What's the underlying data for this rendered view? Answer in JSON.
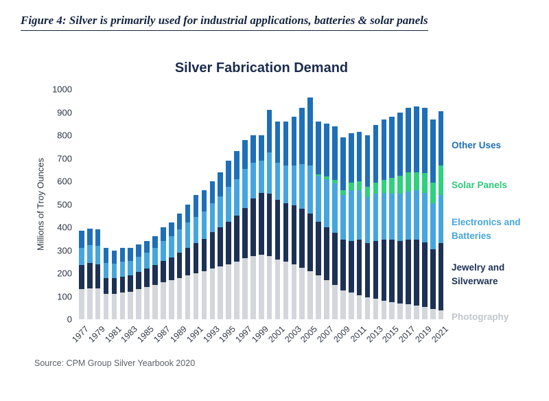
{
  "caption": "Figure 4: Silver is primarily used for industrial applications, batteries & solar panels",
  "source": "Source: CPM Group Silver Yearbook 2020",
  "chart_data": {
    "type": "bar",
    "stacked": true,
    "title": "Silver Fabrication Demand",
    "xlabel": "",
    "ylabel": "Millions of Troy Ounces",
    "ylim": [
      0,
      1000
    ],
    "ytick_step": 100,
    "grid": false,
    "legend_position": "right",
    "categories": [
      1977,
      1978,
      1979,
      1980,
      1981,
      1982,
      1983,
      1984,
      1985,
      1986,
      1987,
      1988,
      1989,
      1990,
      1991,
      1992,
      1993,
      1994,
      1995,
      1996,
      1997,
      1998,
      1999,
      2000,
      2001,
      2002,
      2003,
      2004,
      2005,
      2006,
      2007,
      2008,
      2009,
      2010,
      2011,
      2012,
      2013,
      2014,
      2015,
      2016,
      2017,
      2018,
      2019,
      2020,
      2021
    ],
    "xtick_labels": [
      1977,
      1979,
      1981,
      1983,
      1985,
      1987,
      1989,
      1991,
      1993,
      1995,
      1997,
      1999,
      2001,
      2003,
      2005,
      2007,
      2009,
      2011,
      2013,
      2015,
      2017,
      2019,
      2021
    ],
    "series": [
      {
        "name": "Photography",
        "color": "#d3d6da",
        "values": [
          130,
          135,
          135,
          110,
          110,
          115,
          120,
          130,
          140,
          150,
          160,
          170,
          180,
          190,
          200,
          210,
          220,
          230,
          240,
          250,
          265,
          275,
          280,
          275,
          260,
          250,
          240,
          225,
          210,
          190,
          170,
          150,
          125,
          115,
          105,
          95,
          90,
          80,
          75,
          70,
          65,
          60,
          55,
          45,
          40
        ]
      },
      {
        "name": "Jewelry and Silverware",
        "color": "#1d3154",
        "values": [
          105,
          110,
          105,
          70,
          70,
          70,
          70,
          75,
          80,
          85,
          95,
          100,
          110,
          120,
          130,
          140,
          160,
          170,
          185,
          200,
          220,
          250,
          270,
          270,
          260,
          255,
          255,
          255,
          250,
          235,
          230,
          225,
          220,
          225,
          240,
          235,
          250,
          265,
          270,
          270,
          280,
          285,
          280,
          260,
          290
        ]
      },
      {
        "name": "Electronics and Batteries",
        "color": "#45a6df",
        "values": [
          75,
          78,
          78,
          65,
          62,
          65,
          65,
          68,
          70,
          75,
          85,
          90,
          100,
          110,
          115,
          120,
          125,
          135,
          150,
          160,
          170,
          155,
          140,
          180,
          160,
          165,
          175,
          195,
          210,
          200,
          210,
          215,
          195,
          220,
          215,
          200,
          205,
          205,
          200,
          205,
          210,
          215,
          215,
          200,
          210
        ]
      },
      {
        "name": "Solar Panels",
        "color": "#2fd07e",
        "values": [
          0,
          0,
          0,
          0,
          0,
          0,
          0,
          0,
          0,
          0,
          0,
          0,
          0,
          0,
          0,
          0,
          0,
          0,
          0,
          0,
          0,
          0,
          0,
          0,
          0,
          0,
          0,
          0,
          0,
          5,
          10,
          15,
          20,
          35,
          40,
          45,
          50,
          55,
          70,
          80,
          85,
          80,
          85,
          90,
          130
        ]
      },
      {
        "name": "Other Uses",
        "color": "#1e6fb8",
        "values": [
          75,
          72,
          72,
          65,
          58,
          60,
          55,
          52,
          50,
          50,
          60,
          60,
          70,
          80,
          95,
          90,
          95,
          105,
          115,
          120,
          125,
          120,
          110,
          185,
          180,
          190,
          210,
          245,
          295,
          230,
          230,
          235,
          230,
          215,
          215,
          225,
          250,
          265,
          265,
          275,
          280,
          285,
          285,
          275,
          235
        ]
      }
    ],
    "legend": [
      {
        "label": "Other Uses",
        "color": "#1e6fb8"
      },
      {
        "label": "Solar Panels",
        "color": "#2fc97a"
      },
      {
        "label": "Electronics and Batteries",
        "color": "#45a6df"
      },
      {
        "label": "Jewelry and Silverware",
        "color": "#1d3154"
      },
      {
        "label": "Photography",
        "color": "#c2c7cd"
      }
    ]
  }
}
